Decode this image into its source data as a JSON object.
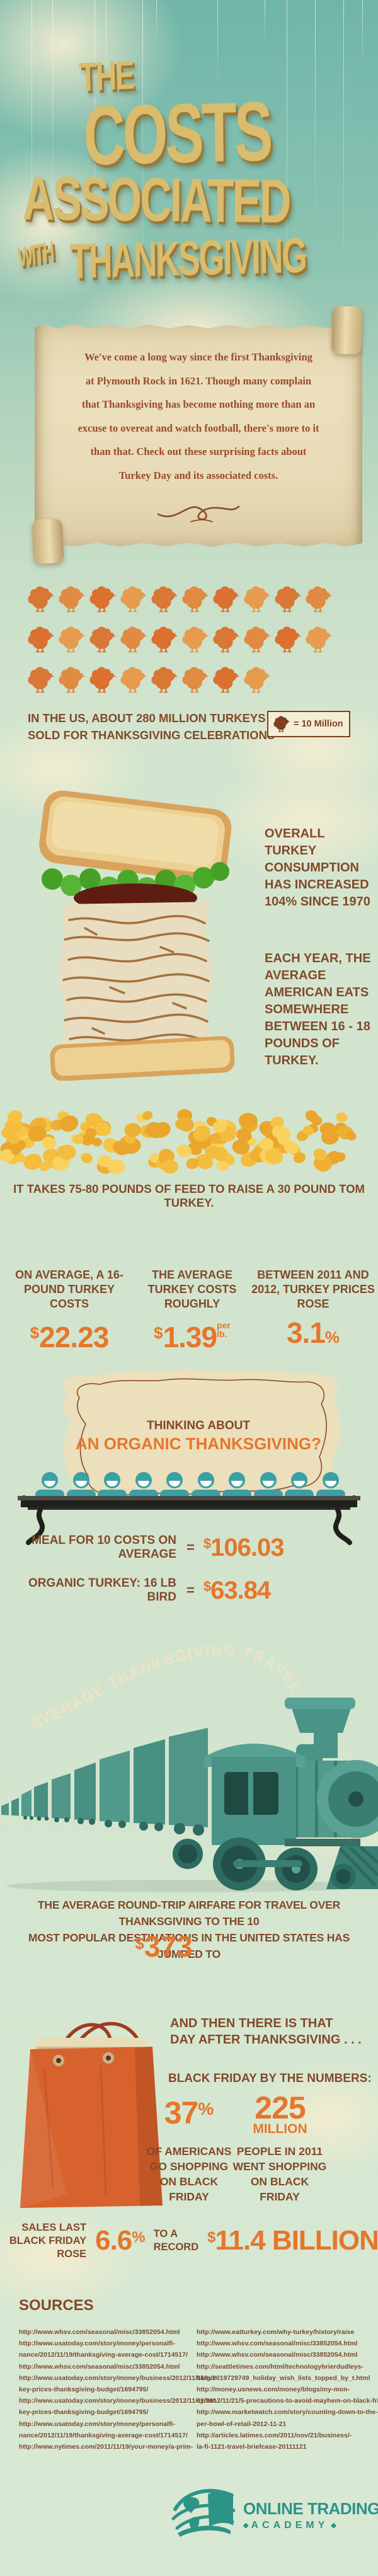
{
  "title": {
    "the": "THE",
    "costs": "COSTS",
    "associated": "ASSOCIATED",
    "with": "WITH",
    "thanksgiving": "THANKSGIVING"
  },
  "intro": {
    "lines": [
      "We've come a long way since the first Thanksgiving",
      "at Plymouth Rock in 1621. Though many complain",
      "that Thanksgiving has become nothing more than an",
      "excuse to overeat and watch football, there's more to it",
      "than that. Check out these surprising facts about",
      "Turkey Day and its associated costs."
    ]
  },
  "turkeys_sold": {
    "caption": [
      "IN THE US, ABOUT 280 MILLION TURKEYS ARE",
      "SOLD FOR THANKSGIVING CELEBRATIONS"
    ],
    "legend_label": "= 10 Million",
    "rows": [
      10,
      10,
      8
    ],
    "icon": "turkey-icon",
    "unit_value": "10 Million",
    "total": "280 Million"
  },
  "consumption": {
    "fact1": "OVERALL TURKEY CONSUMPTION HAS INCREASED 104% SINCE 1970",
    "fact2": "EACH YEAR, THE AVERAGE AMERICAN EATS SOMEWHERE BETWEEN 16 - 18 POUNDS OF TURKEY."
  },
  "feed": {
    "caption": "IT TAKES 75-80 POUNDS OF FEED TO RAISE A 30 POUND TOM TURKEY."
  },
  "stats": [
    {
      "label": "ON AVERAGE, A 16-POUND TURKEY COSTS",
      "currency": "$",
      "value": "22.23"
    },
    {
      "label": "THE AVERAGE TURKEY COSTS ROUGHLY",
      "currency": "$",
      "value": "1.39",
      "unit_top": "per",
      "unit_bottom": "lb."
    },
    {
      "label": "BETWEEN 2011 AND 2012, TURKEY PRICES ROSE",
      "value": "3.1",
      "unit": "%"
    }
  ],
  "organic": {
    "heading1": "THINKING ABOUT",
    "heading2": "AN ORGANIC THANKSGIVING?",
    "people": 10,
    "rows": [
      {
        "label": "MEAL FOR 10 COSTS ON AVERAGE",
        "eq": "=",
        "currency": "$",
        "value": "106.03"
      },
      {
        "label": "ORGANIC TURKEY: 16 LB BIRD",
        "eq": "=",
        "currency": "$",
        "value": "63.84"
      }
    ]
  },
  "travel": {
    "arc": "AVERAGE THANKSGIVING TRAVEL COST",
    "caption": [
      "THE AVERAGE ROUND-TRIP AIRFARE FOR TRAVEL OVER THANKSGIVING TO THE 10",
      "MOST POPULAR DESTINATIONS IN THE UNITED STATES HAS JUMPED TO"
    ],
    "currency": "$",
    "value": "373"
  },
  "black_friday": {
    "intro": [
      "AND THEN THERE IS THAT",
      "DAY AFTER THANKSGIVING . . ."
    ],
    "heading": "BLACK FRIDAY BY THE NUMBERS:",
    "stat1": {
      "value": "37",
      "unit": "%",
      "label": "OF AMERICANS GO SHOPPING ON BLACK FRIDAY"
    },
    "stat2": {
      "value": "225",
      "unit": "MILLION",
      "label": "PEOPLE IN 2011 WENT SHOPPING ON BLACK FRIDAY"
    },
    "sales": {
      "lead": "SALES LAST BLACK FRIDAY ROSE",
      "pct": "6.6",
      "pct_unit": "%",
      "mid": "TO A RECORD",
      "currency": "$",
      "value": "11.4 BILLION"
    }
  },
  "sources": {
    "heading": "SOURCES",
    "col1": [
      "http://www.whsv.com/seasonal/misc/33852054.html",
      "http://www.usatoday.com/story/money/personalfi-",
      "nance/2012/11/19/thanksgiving-average-cost/1714517/",
      "http://www.whsv.com/seasonal/misc/33852054.html",
      "http://www.usatoday.com/story/money/business/2012/11/11/tur-",
      "key-prices-thanksgiving-budget/1694795/",
      "http://www.usatoday.com/story/money/business/2012/11/11/tur-",
      "key-prices-thanksgiving-budget/1694795/",
      "http://www.usatoday.com/story/money/personalfi-",
      "nance/2012/11/19/thanksgiving-average-cost/1714517/",
      "http://www.nytimes.com/2011/11/19/your-money/a-prim-"
    ],
    "col2": [
      "http://www.eatturkey.com/why-turkey/history/raise",
      "http://www.whsv.com/seasonal/misc/33852054.html",
      "http://www.whsv.com/seasonal/misc/33852054.html",
      "http://seattletimes.com/html/technologybrierdudleys-",
      "blog/2019729749_holiday_wish_lists_topped_by_t.html",
      "http://money.usnews.com/money/blogs/my-mon-",
      "ey/2012/11/21/5-precautions-to-avoid-mayhem-on-black-friday",
      "http://www.marketwatch.com/story/counting-down-to-the-su-",
      "per-bowl-of-retail-2012-11-21",
      "http://articles.latimes.com/2011/nov/21/business/-",
      "la-fi-1121-travel-briefcase-20111121"
    ]
  },
  "brand": {
    "line1": "ONLINE TRADING",
    "reg": "®",
    "line2": "ACADEMY",
    "diamond": "◆"
  },
  "colors": {
    "accent_orange": "#e5762c",
    "text_brown": "#82492a",
    "gold": "#d9bc6d",
    "teal_figure": "#3ba0a6",
    "logo_teal": "#2e9387",
    "parchment": "#ecdfbd"
  },
  "chart_data": {
    "type": "pictograph",
    "icon": "turkey",
    "unit_label": "= 10 Million",
    "rows": [
      10,
      10,
      8
    ],
    "total_icons": 28,
    "total_value": "280 million turkeys sold for Thanksgiving celebrations"
  }
}
